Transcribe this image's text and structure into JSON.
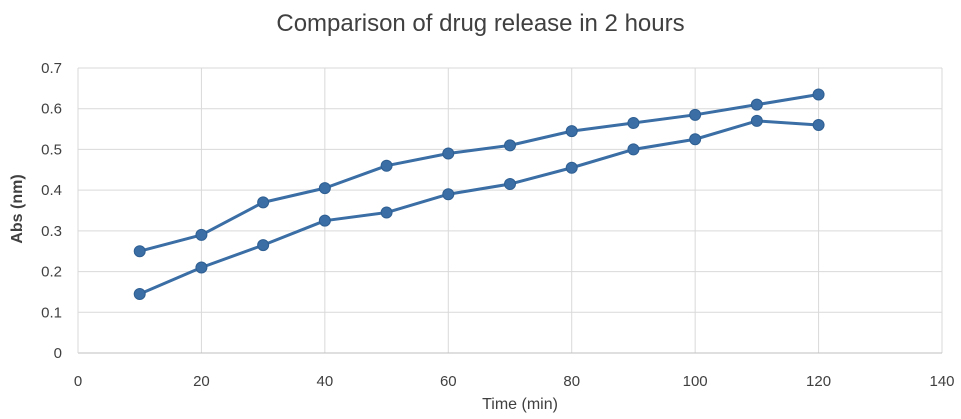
{
  "chart_data": {
    "type": "line",
    "title": "Comparison of drug release in 2 hours",
    "xlabel": "Time (min)",
    "ylabel": "Abs (nm)",
    "xlim": [
      0,
      140
    ],
    "ylim": [
      0,
      0.7
    ],
    "x_ticks": [
      0,
      20,
      40,
      60,
      80,
      100,
      120,
      140
    ],
    "y_ticks": [
      0,
      0.1,
      0.2,
      0.3,
      0.4,
      0.5,
      0.6,
      0.7
    ],
    "x_tick_labels": [
      "0",
      "20",
      "40",
      "60",
      "80",
      "100",
      "120",
      "140"
    ],
    "y_tick_labels": [
      "0",
      "0.1",
      "0.2",
      "0.3",
      "0.4",
      "0.5",
      "0.6",
      "0.7"
    ],
    "grid": true,
    "legend": "none",
    "x": [
      10,
      20,
      30,
      40,
      50,
      60,
      70,
      80,
      90,
      100,
      110,
      120
    ],
    "series": [
      {
        "values": [
          0.25,
          0.29,
          0.37,
          0.405,
          0.46,
          0.49,
          0.51,
          0.545,
          0.565,
          0.585,
          0.61,
          0.635
        ],
        "color": "#3a6ea5"
      },
      {
        "values": [
          0.145,
          0.21,
          0.265,
          0.325,
          0.345,
          0.39,
          0.415,
          0.455,
          0.5,
          0.525,
          0.57,
          0.56
        ],
        "color": "#3a6ea5"
      }
    ]
  }
}
